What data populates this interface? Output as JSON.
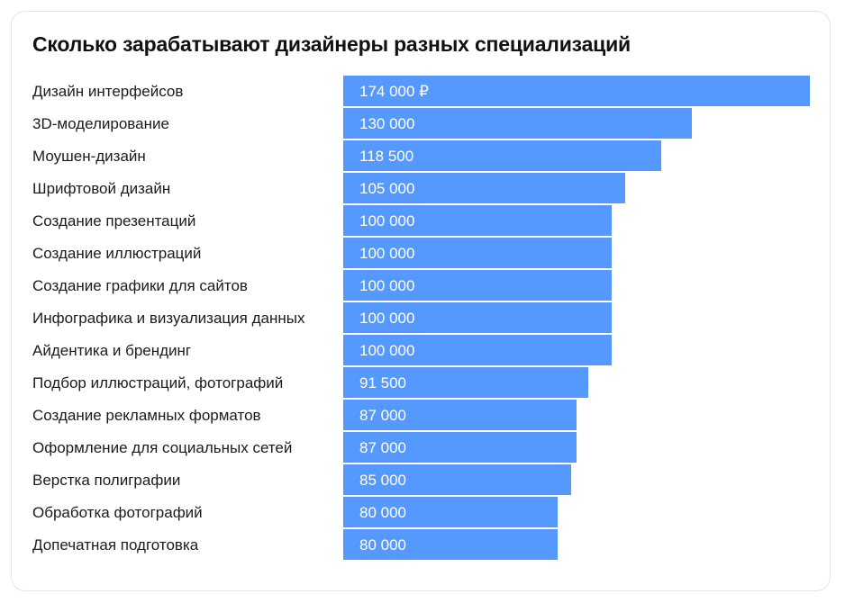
{
  "title": "Сколько зарабатывают дизайнеры разных специализаций",
  "colors": {
    "bar": "#5599ff",
    "bar_separator": "#ffffff",
    "card_border": "#e4e4e4",
    "label_text": "#1b1b1b",
    "value_text": "#ffffff"
  },
  "chart_data": {
    "type": "bar",
    "orientation": "horizontal",
    "title": "Сколько зарабатывают дизайнеры разных специализаций",
    "xlabel": "",
    "ylabel": "",
    "xlim": [
      0,
      174000
    ],
    "grid": false,
    "legend": "none",
    "categories": [
      "Дизайн интерфейсов",
      "3D-моделирование",
      "Моушен-дизайн",
      "Шрифтовой дизайн",
      "Создание презентаций",
      "Создание иллюстраций",
      "Создание графики для сайтов",
      "Инфографика и визуализация данных",
      "Айдентика и брендинг",
      "Подбор иллюстраций, фотографий",
      "Создание рекламных форматов",
      "Оформление для социальных сетей",
      "Верстка полиграфии",
      "Обработка фотографий",
      "Допечатная подготовка"
    ],
    "values": [
      174000,
      130000,
      118500,
      105000,
      100000,
      100000,
      100000,
      100000,
      100000,
      91500,
      87000,
      87000,
      85000,
      80000,
      80000
    ],
    "value_labels": [
      "174 000 ₽",
      "130 000",
      "118 500",
      "105 000",
      "100 000",
      "100 000",
      "100 000",
      "100 000",
      "100 000",
      "91 500",
      "87 000",
      "87 000",
      "85 000",
      "80 000",
      "80 000"
    ]
  }
}
